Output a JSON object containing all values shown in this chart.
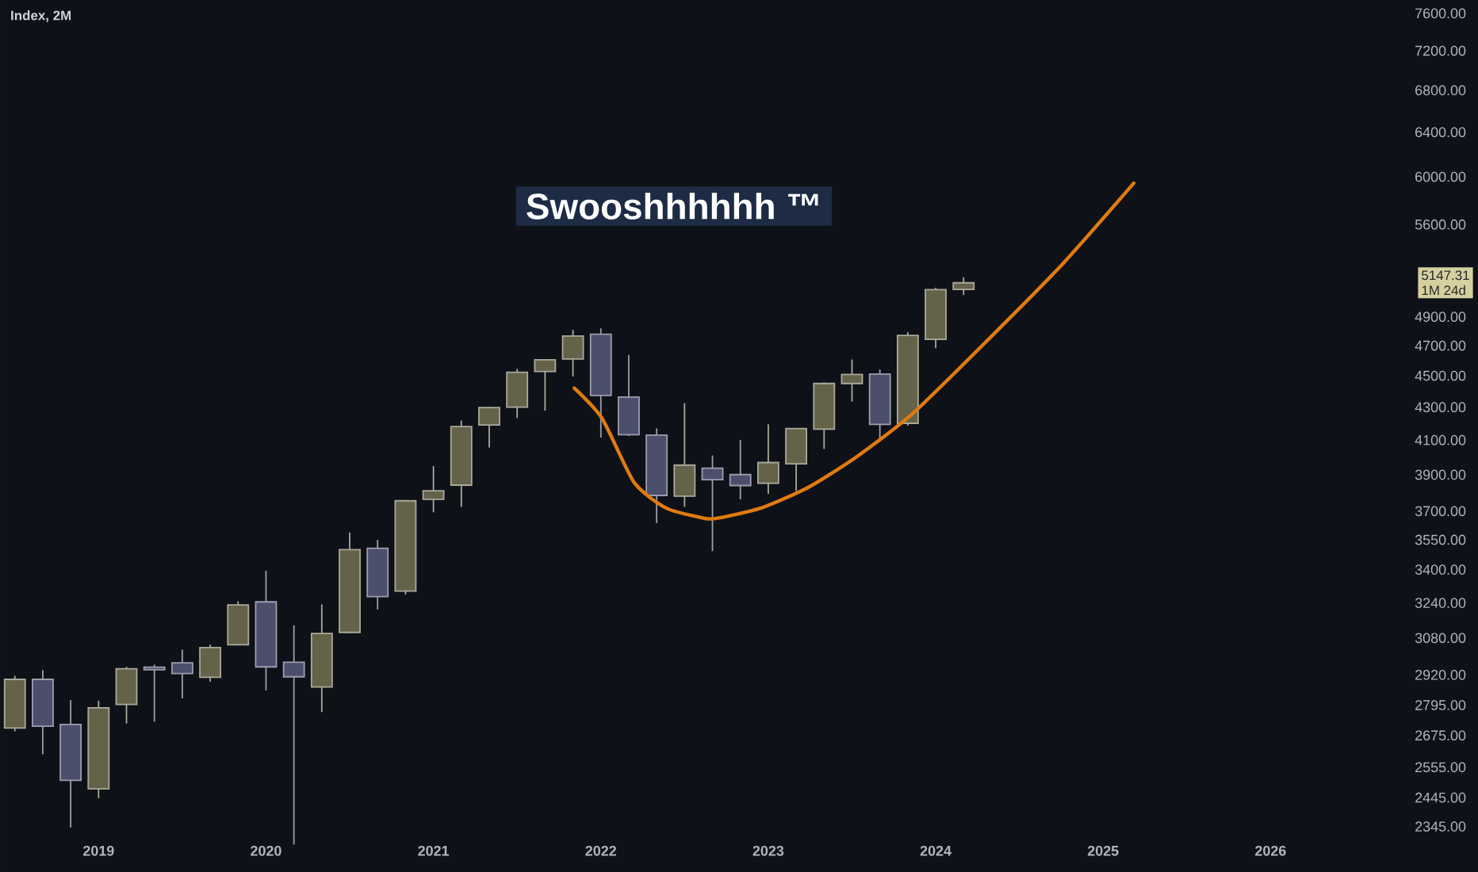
{
  "chart_data": {
    "type": "candlestick",
    "title": "Index, 2M",
    "x": [
      "2018-07",
      "2018-09",
      "2018-11",
      "2019-01",
      "2019-03",
      "2019-05",
      "2019-07",
      "2019-09",
      "2019-11",
      "2020-01",
      "2020-03",
      "2020-05",
      "2020-07",
      "2020-09",
      "2020-11",
      "2021-01",
      "2021-03",
      "2021-05",
      "2021-07",
      "2021-09",
      "2021-11",
      "2022-01",
      "2022-03",
      "2022-05",
      "2022-07",
      "2022-09",
      "2022-11",
      "2023-01",
      "2023-03",
      "2023-05",
      "2023-07",
      "2023-09",
      "2023-11",
      "2024-01",
      "2024-03"
    ],
    "ohlc": [
      [
        2704,
        2916,
        2691,
        2901
      ],
      [
        2901,
        2940,
        2603,
        2711
      ],
      [
        2718,
        2815,
        2342,
        2507
      ],
      [
        2476,
        2813,
        2443,
        2784
      ],
      [
        2798,
        2954,
        2722,
        2946
      ],
      [
        2953,
        2964,
        2729,
        2942
      ],
      [
        2971,
        3028,
        2822,
        2926
      ],
      [
        2910,
        3050,
        2891,
        3038
      ],
      [
        3050,
        3248,
        3050,
        3231
      ],
      [
        3245,
        3394,
        2855,
        2954
      ],
      [
        2974,
        3137,
        2285,
        2912
      ],
      [
        2869,
        3233,
        2767,
        3100
      ],
      [
        3105,
        3588,
        3101,
        3500
      ],
      [
        3507,
        3550,
        3210,
        3270
      ],
      [
        3296,
        3760,
        3280,
        3756
      ],
      [
        3764,
        3950,
        3694,
        3811
      ],
      [
        3842,
        4218,
        3723,
        4181
      ],
      [
        4191,
        4302,
        4056,
        4298
      ],
      [
        4300,
        4545,
        4233,
        4523
      ],
      [
        4528,
        4608,
        4279,
        4605
      ],
      [
        4610,
        4808,
        4495,
        4766
      ],
      [
        4778,
        4819,
        4115,
        4374
      ],
      [
        4363,
        4637,
        4124,
        4132
      ],
      [
        4130,
        4170,
        3636,
        3785
      ],
      [
        3781,
        4325,
        3723,
        3955
      ],
      [
        3937,
        4010,
        3492,
        3872
      ],
      [
        3901,
        4101,
        3764,
        3840
      ],
      [
        3853,
        4195,
        3794,
        3970
      ],
      [
        3963,
        4170,
        3809,
        4169
      ],
      [
        4166,
        4458,
        4048,
        4450
      ],
      [
        4450,
        4607,
        4335,
        4508
      ],
      [
        4511,
        4541,
        4104,
        4194
      ],
      [
        4201,
        4793,
        4187,
        4770
      ],
      [
        4743,
        5111,
        4683,
        5096
      ],
      [
        5098,
        5189,
        5057,
        5147.31
      ]
    ],
    "colors": [
      "#65624a",
      "#4b4f6b",
      "#4b4f6b",
      "#65624a",
      "#65624a",
      "#4b4f6b",
      "#4b4f6b",
      "#65624a",
      "#65624a",
      "#4b4f6b",
      "#4b4f6b",
      "#65624a",
      "#65624a",
      "#4b4f6b",
      "#65624a",
      "#65624a",
      "#65624a",
      "#65624a",
      "#65624a",
      "#65624a",
      "#65624a",
      "#4b4f6b",
      "#4b4f6b",
      "#4b4f6b",
      "#65624a",
      "#4b4f6b",
      "#4b4f6b",
      "#65624a",
      "#65624a",
      "#65624a",
      "#65624a",
      "#4b4f6b",
      "#65624a",
      "#65624a",
      "#65624a"
    ],
    "series": [
      {
        "type": "line",
        "color": "#e07b10",
        "x": [
          "2021-11-04",
          "2022-01-04",
          "2022-03-13",
          "2022-05-22",
          "2022-07-30",
          "2022-09-04",
          "2022-12-16",
          "2023-03-28",
          "2023-07-10",
          "2023-11-10",
          "2024-04-13",
          "2024-10-04",
          "2025-03-07"
        ],
        "values": [
          4420,
          4230,
          3857,
          3717,
          3670,
          3660,
          3717,
          3830,
          4000,
          4256,
          4706,
          5290,
          5945
        ]
      }
    ],
    "log": "y",
    "xlim": [
      "2018-05-30",
      "2027-03-28"
    ],
    "xticks": [
      "2019",
      "2020",
      "2021",
      "2022",
      "2023",
      "2024",
      "2025",
      "2026"
    ],
    "ylim": [
      2196,
      7750
    ],
    "yticks": [
      {
        "value": 2345,
        "label": "2345.00"
      },
      {
        "value": 2445,
        "label": "2445.00"
      },
      {
        "value": 2555,
        "label": "2555.00"
      },
      {
        "value": 2675,
        "label": "2675.00"
      },
      {
        "value": 2795,
        "label": "2795.00"
      },
      {
        "value": 2920,
        "label": "2920.00"
      },
      {
        "value": 3080,
        "label": "3080.00"
      },
      {
        "value": 3240,
        "label": "3240.00"
      },
      {
        "value": 3400,
        "label": "3400.00"
      },
      {
        "value": 3550,
        "label": "3550.00"
      },
      {
        "value": 3700,
        "label": "3700.00"
      },
      {
        "value": 3900,
        "label": "3900.00"
      },
      {
        "value": 4100,
        "label": "4100.00"
      },
      {
        "value": 4300,
        "label": "4300.00"
      },
      {
        "value": 4500,
        "label": "4500.00"
      },
      {
        "value": 4700,
        "label": "4700.00"
      },
      {
        "value": 4900,
        "label": "4900.00"
      },
      {
        "value": 5600,
        "label": "5600.00"
      },
      {
        "value": 6000,
        "label": "6000.00"
      },
      {
        "value": 6400,
        "label": "6400.00"
      },
      {
        "value": 6800,
        "label": "6800.00"
      },
      {
        "value": 7200,
        "label": "7200.00"
      },
      {
        "value": 7600,
        "label": "7600.00"
      }
    ],
    "annotations": [
      "Swooshhhhhh ™",
      {
        "text": "5147.31",
        "y": 5147.31
      },
      "1M 24d"
    ]
  }
}
